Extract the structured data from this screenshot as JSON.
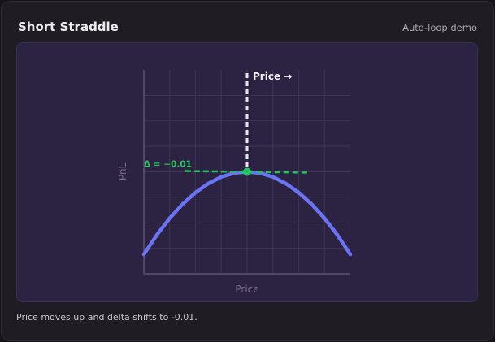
{
  "card": {
    "title": "Short Straddle",
    "mode_label": "Auto-loop demo",
    "caption": "Price moves up and delta shifts to -0.01."
  },
  "chart_data": {
    "type": "line",
    "title": "",
    "xlabel": "Price",
    "ylabel": "PnL",
    "xlim": [
      0,
      8
    ],
    "ylim": [
      0,
      8
    ],
    "grid": true,
    "series": [
      {
        "x": [
          0,
          0.5,
          1,
          1.5,
          2,
          2.5,
          3,
          3.5,
          4,
          4.5,
          5,
          5.5,
          6,
          6.5,
          7,
          7.5,
          8
        ],
        "y": [
          0.76,
          1.52,
          2.18,
          2.73,
          3.19,
          3.54,
          3.8,
          3.95,
          4,
          3.95,
          3.8,
          3.54,
          3.19,
          2.73,
          2.18,
          1.52,
          0.76
        ],
        "color": "#6b73f5"
      }
    ],
    "marker": {
      "x": 4,
      "y": 4,
      "color": "#22c55e"
    },
    "price_line": {
      "x": 4,
      "label": "Price →",
      "color": "#e8e6ee"
    },
    "tangent": {
      "x": [
        1.6,
        6.4
      ],
      "y": [
        4.03,
        3.97
      ],
      "color": "#22c55e",
      "label": "Δ = −0.01"
    }
  }
}
